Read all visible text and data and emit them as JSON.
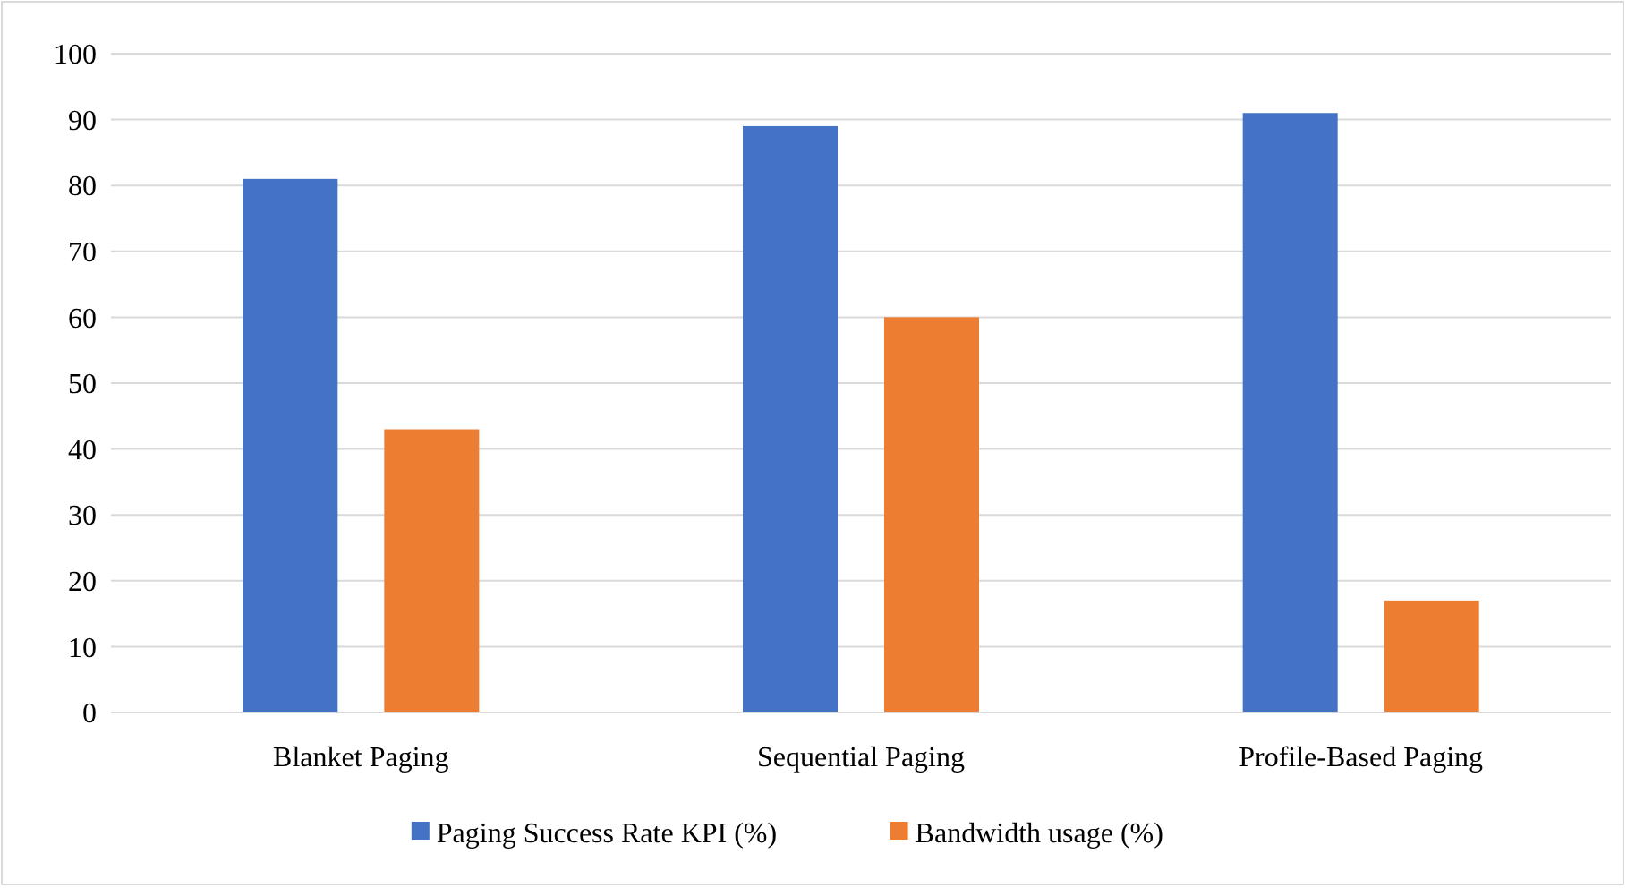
{
  "chart_data": {
    "type": "bar",
    "categories": [
      "Blanket Paging",
      "Sequential Paging",
      "Profile-Based Paging"
    ],
    "series": [
      {
        "name": "Paging Success Rate KPI (%)",
        "color": "#4472c4",
        "values": [
          81,
          89,
          91
        ]
      },
      {
        "name": "Bandwidth usage (%)",
        "color": "#ed7d31",
        "values": [
          43,
          60,
          17
        ]
      }
    ],
    "ylim": [
      0,
      100
    ],
    "yticks": [
      0,
      10,
      20,
      30,
      40,
      50,
      60,
      70,
      80,
      90,
      100
    ],
    "grid": "y",
    "legend": "bottom"
  }
}
